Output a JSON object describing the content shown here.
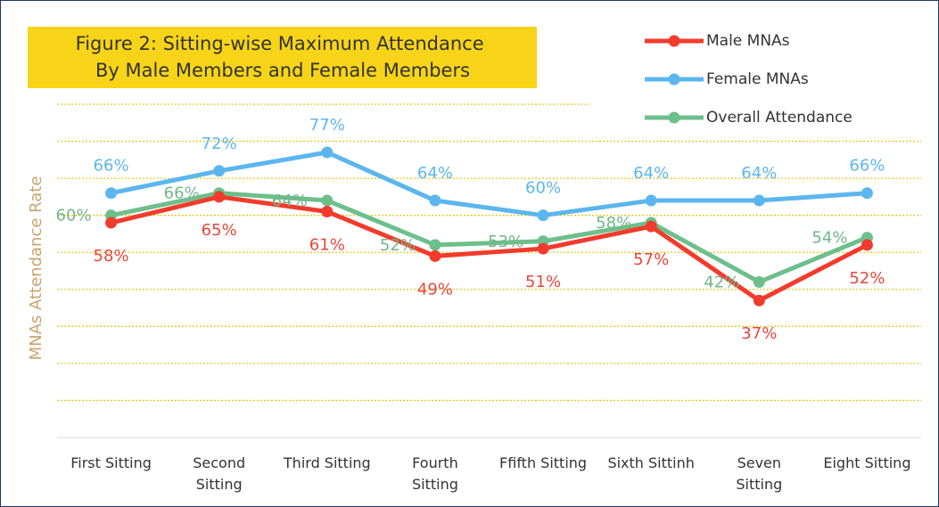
{
  "chart_data": {
    "type": "line",
    "title": "Figure 2: Sitting-wise Maximum Attendance By Male Members and Female Members",
    "y_label": "MNAs Attendance Rate",
    "categories": [
      "First Sitting",
      "Second Sitting",
      "Third Sitting",
      "Fourth Sitting",
      "Ffifth Sitting",
      "Sixth Sittinh",
      "Seven Sitting",
      "Eight Sitting"
    ],
    "series": [
      {
        "name": "Male MNAs",
        "color": "#f23b2c",
        "values": [
          58,
          65,
          61,
          49,
          51,
          57,
          37,
          52
        ],
        "value_labels": [
          "58%",
          "65%",
          "61%",
          "49%",
          "51%",
          "57%",
          "37%",
          "52%"
        ]
      },
      {
        "name": "Female MNAs",
        "color": "#5cb6ee",
        "values": [
          66,
          72,
          77,
          64,
          60,
          64,
          64,
          66
        ],
        "value_labels": [
          "66%",
          "72%",
          "77%",
          "64%",
          "60%",
          "64%",
          "64%",
          "66%"
        ]
      },
      {
        "name": "Overall Attendance",
        "color": "#6dbf8c",
        "values": [
          60,
          66,
          64,
          52,
          53,
          58,
          42,
          54
        ],
        "value_labels": [
          "60%",
          "66%",
          "64%",
          "52%",
          "53%",
          "58%",
          "42%",
          "54%"
        ]
      }
    ],
    "ylim": [
      0,
      90
    ],
    "yticks": [
      0,
      10,
      20,
      30,
      40,
      50,
      60,
      70,
      80,
      90
    ],
    "grid": true
  }
}
